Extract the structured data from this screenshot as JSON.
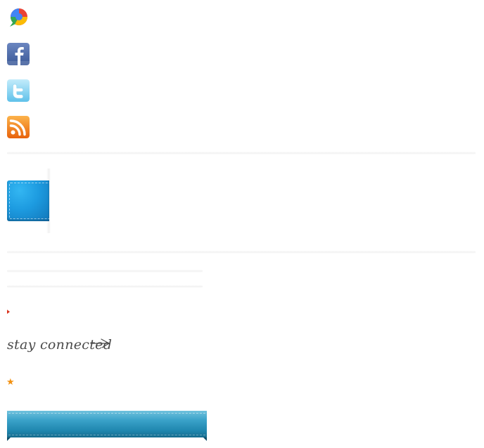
{
  "icons": [
    {
      "name": "google-buzz-icon"
    },
    {
      "name": "facebook-icon"
    },
    {
      "name": "twitter-icon"
    },
    {
      "name": "rss-icon"
    }
  ],
  "tagline": {
    "text": "stay connected",
    "arrow_icon": "right-arrow-icon"
  },
  "colors": {
    "tab_blue": "#1d9be0",
    "ribbon_blue": "#2b93bb",
    "star_orange": "#f29111",
    "arrow_red": "#d9341f",
    "handwriting": "#4a4a4a"
  },
  "misc": {
    "star_icon": "star-icon",
    "bullet_icon": "triangle-bullet-icon"
  }
}
